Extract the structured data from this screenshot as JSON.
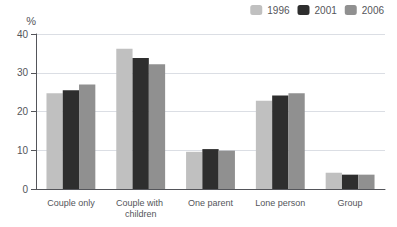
{
  "chart_data": {
    "type": "bar",
    "ylabel": "%",
    "categories": [
      "Couple only",
      "Couple with children",
      "One parent",
      "Lone person",
      "Group"
    ],
    "series": [
      {
        "name": "1996",
        "color": "#c0c0c0",
        "values": [
          24.7,
          36.2,
          9.6,
          22.8,
          4.2
        ]
      },
      {
        "name": "2001",
        "color": "#2e2e2e",
        "values": [
          25.5,
          33.8,
          10.3,
          24.1,
          3.7
        ]
      },
      {
        "name": "2006",
        "color": "#909090",
        "values": [
          27.0,
          32.2,
          9.9,
          24.7,
          3.7
        ]
      }
    ],
    "ylim": [
      0,
      40
    ],
    "yticks": [
      0,
      10,
      20,
      30,
      40
    ],
    "grid": true,
    "legend": "upper right"
  }
}
